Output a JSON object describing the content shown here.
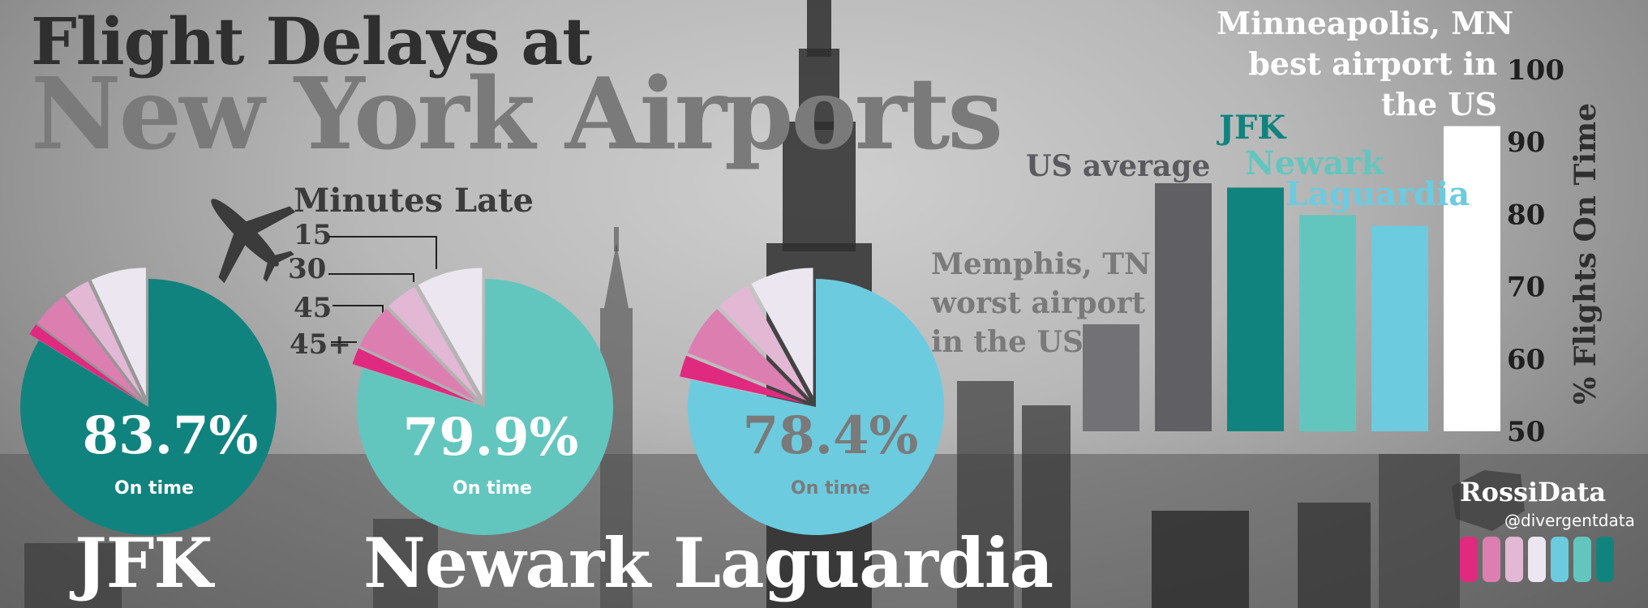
{
  "title": {
    "line1": "Flight Delays at",
    "line2": "New York Airports"
  },
  "legend": {
    "title": "Minutes Late",
    "items": [
      "15",
      "30",
      "45",
      "45+"
    ],
    "colors": [
      "#ece6f0",
      "#e2b8d4",
      "#dc7fb0",
      "#df2a80"
    ]
  },
  "chart_data": [
    {
      "type": "pie",
      "airport": "JFK",
      "on_time_label": "83.7%",
      "on_time_caption": "On time",
      "slices": [
        {
          "label": "On time",
          "value": 83.7,
          "color": "#11837e"
        },
        {
          "label": "45+",
          "value": 1.4,
          "color": "#df2a80"
        },
        {
          "label": "45",
          "value": 4.6,
          "color": "#dc7fb0"
        },
        {
          "label": "30",
          "value": 3.3,
          "color": "#e2b8d4"
        },
        {
          "label": "15",
          "value": 7.0,
          "color": "#ece6f0"
        }
      ]
    },
    {
      "type": "pie",
      "airport": "Newark",
      "on_time_label": "79.9%",
      "on_time_caption": "On time",
      "slices": [
        {
          "label": "On time",
          "value": 79.9,
          "color": "#62c6bf"
        },
        {
          "label": "45+",
          "value": 2.1,
          "color": "#df2a80"
        },
        {
          "label": "45",
          "value": 5.7,
          "color": "#dc7fb0"
        },
        {
          "label": "30",
          "value": 4.0,
          "color": "#e2b8d4"
        },
        {
          "label": "15",
          "value": 8.3,
          "color": "#ece6f0"
        }
      ]
    },
    {
      "type": "pie",
      "airport": "Laguardia",
      "on_time_label": "78.4%",
      "on_time_caption": "On time",
      "slices": [
        {
          "label": "On time",
          "value": 78.4,
          "color": "#6ccbdf"
        },
        {
          "label": "45+",
          "value": 2.7,
          "color": "#df2a80"
        },
        {
          "label": "45",
          "value": 6.6,
          "color": "#dc7fb0"
        },
        {
          "label": "30",
          "value": 4.3,
          "color": "#e2b8d4"
        },
        {
          "label": "15",
          "value": 8.0,
          "color": "#ece6f0"
        }
      ]
    },
    {
      "type": "bar",
      "categories": [
        "Memphis, TN worst airport in the US",
        "US average",
        "JFK",
        "Newark",
        "Laguardia",
        "Minneapolis, MN best airport in the US"
      ],
      "values": [
        64.8,
        84.3,
        83.7,
        79.9,
        78.4,
        92.2
      ],
      "colors": [
        "#727276",
        "#606064",
        "#11837e",
        "#62c6bf",
        "#6ccbdf",
        "#ffffff"
      ],
      "ylabel": "% Flights On Time",
      "ylim": [
        50,
        100
      ],
      "yticks": [
        "50",
        "60",
        "70",
        "80",
        "90",
        "100"
      ]
    }
  ],
  "bar_labels": {
    "memphis": [
      "Memphis, TN",
      "worst airport",
      "in the US"
    ],
    "us_average": "US average",
    "jfk": "JFK",
    "newark": "Newark",
    "laguardia": "Laguardia",
    "minneapolis": [
      "Minneapolis, MN",
      "best airport in",
      "the US"
    ]
  },
  "logo": {
    "name": "RossiData",
    "handle": "@divergentdata",
    "stripe_colors": [
      "#df2a80",
      "#dc7fb0",
      "#e2b8d4",
      "#ece6f0",
      "#6ccbdf",
      "#62c6bf",
      "#11837e"
    ]
  }
}
